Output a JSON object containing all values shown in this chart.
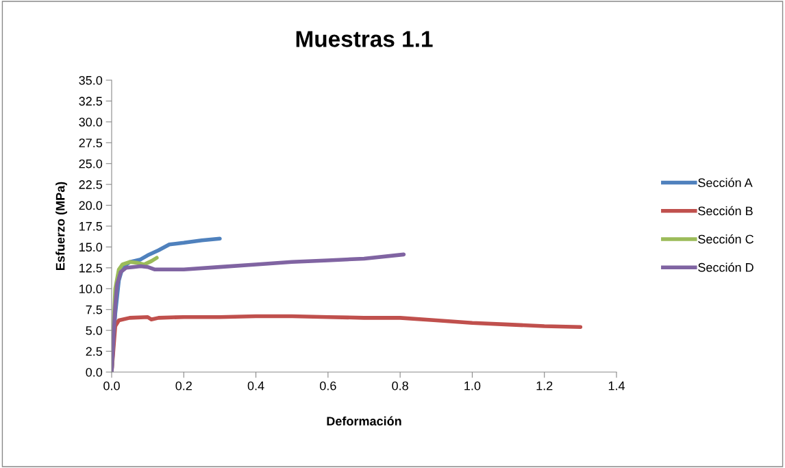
{
  "chart_data": {
    "type": "line",
    "title": "Muestras 1.1",
    "xlabel": "Deformación",
    "ylabel": "Esfuerzo (MPa)",
    "xlim": [
      0.0,
      1.4
    ],
    "xticks": [
      {
        "value": 0,
        "label": "0.0"
      },
      0.2,
      0.4,
      0.6,
      0.8,
      {
        "value": 1,
        "label": "1.0"
      },
      1.2,
      1.4
    ],
    "ylim": [
      0.0,
      35.0
    ],
    "yticks": [
      {
        "value": 0,
        "label": "0.0"
      },
      2.5,
      {
        "value": 5,
        "label": "5.0"
      },
      7.5,
      {
        "value": 10,
        "label": "10.0"
      },
      12.5,
      {
        "value": 15,
        "label": "15.0"
      },
      17.5,
      {
        "value": 20,
        "label": "20.0"
      },
      22.5,
      {
        "value": 25,
        "label": "25.0"
      },
      27.5,
      {
        "value": 30,
        "label": "30.0"
      },
      32.5,
      {
        "value": 35,
        "label": "35.0"
      }
    ],
    "grid": false,
    "legend": "right",
    "marker": "none",
    "line_style": "solid",
    "series": [
      {
        "name": "Sección A",
        "color": "#4f81bd",
        "x": [
          0,
          0.01,
          0.02,
          0.03,
          0.05,
          0.08,
          0.1,
          0.13,
          0.16,
          0.2,
          0.25,
          0.3
        ],
        "values": [
          0,
          7,
          11,
          12.5,
          13.2,
          13.5,
          14.0,
          14.6,
          15.3,
          15.5,
          15.8,
          16.0
        ]
      },
      {
        "name": "Sección B",
        "color": "#c0504d",
        "x": [
          0,
          0.01,
          0.02,
          0.05,
          0.1,
          0.11,
          0.13,
          0.2,
          0.3,
          0.4,
          0.5,
          0.6,
          0.7,
          0.8,
          0.9,
          1.0,
          1.1,
          1.2,
          1.3
        ],
        "values": [
          0,
          5.5,
          6.2,
          6.5,
          6.6,
          6.3,
          6.5,
          6.6,
          6.6,
          6.7,
          6.7,
          6.6,
          6.5,
          6.5,
          6.2,
          5.9,
          5.7,
          5.5,
          5.4
        ]
      },
      {
        "name": "Sección C",
        "color": "#9bbb59",
        "x": [
          0,
          0.005,
          0.01,
          0.02,
          0.03,
          0.05,
          0.07,
          0.09,
          0.11,
          0.125
        ],
        "values": [
          0,
          5,
          10,
          12.3,
          12.9,
          13.2,
          13.1,
          12.9,
          13.3,
          13.7
        ]
      },
      {
        "name": "Sección D",
        "color": "#8064a2",
        "x": [
          0,
          0.005,
          0.01,
          0.015,
          0.025,
          0.04,
          0.06,
          0.08,
          0.1,
          0.12,
          0.15,
          0.2,
          0.3,
          0.4,
          0.5,
          0.6,
          0.7,
          0.81
        ],
        "values": [
          0,
          4,
          8,
          10.5,
          12,
          12.5,
          12.6,
          12.7,
          12.6,
          12.3,
          12.3,
          12.3,
          12.6,
          12.9,
          13.2,
          13.4,
          13.6,
          14.1
        ]
      }
    ]
  }
}
